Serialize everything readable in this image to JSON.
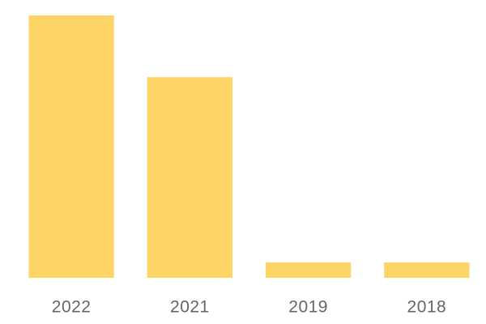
{
  "chart_data": {
    "type": "bar",
    "categories": [
      "2022",
      "2021",
      "2019",
      "2018"
    ],
    "values": [
      17,
      13,
      1,
      1
    ],
    "color": "#fdd466"
  }
}
